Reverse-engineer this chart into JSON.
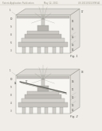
{
  "bg_color": "#f0ede8",
  "header_text": "Patent Application Publication",
  "header_date": "May 12, 2011",
  "header_patent": "US 2011/0110398 A1",
  "fig1_label": "Fig. 1",
  "fig2_label": "Fig. 2",
  "lc": "#999990",
  "dc": "#666660",
  "tc": "#555550",
  "hc": "#bbbbaa"
}
